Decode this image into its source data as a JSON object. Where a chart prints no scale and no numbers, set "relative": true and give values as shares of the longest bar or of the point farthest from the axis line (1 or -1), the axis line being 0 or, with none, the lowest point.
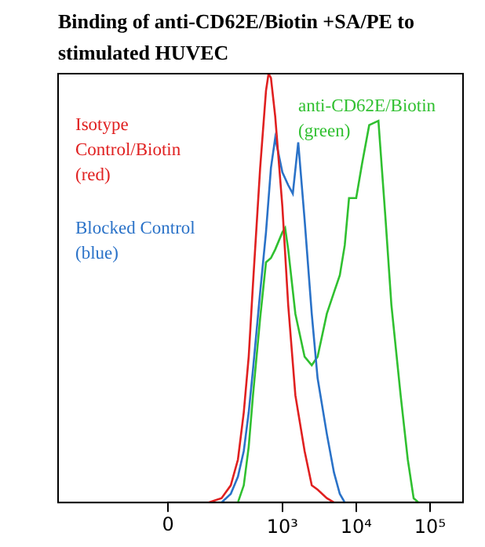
{
  "chart_data": {
    "type": "line",
    "title": "Binding of anti-CD62E/Biotin +SA/PE to stimulated HUVEC",
    "relative": true,
    "log": "x",
    "xlim": [
      0,
      280000
    ],
    "xticks": [
      0,
      {
        "value": 1000,
        "label": "10³"
      },
      {
        "value": 10000,
        "label": "10⁴"
      },
      {
        "value": 100000,
        "label": "10⁵"
      }
    ],
    "series": [
      {
        "name": "Isotype Control/Biotin (red)",
        "color": "#e02020",
        "x": [
          100,
          150,
          200,
          250,
          300,
          350,
          400,
          500,
          600,
          650,
          700,
          800,
          1000,
          1200,
          1500,
          2000,
          2500,
          3000,
          4000,
          5000
        ],
        "values": [
          0,
          0.01,
          0.04,
          0.1,
          0.21,
          0.34,
          0.51,
          0.78,
          0.96,
          1,
          0.99,
          0.9,
          0.69,
          0.46,
          0.25,
          0.12,
          0.04,
          0.03,
          0.01,
          0
        ]
      },
      {
        "name": "Blocked Control (blue)",
        "color": "#2a72c8",
        "x": [
          150,
          200,
          250,
          300,
          350,
          400,
          500,
          600,
          700,
          800,
          1000,
          1200,
          1385,
          1640,
          2000,
          2500,
          3000,
          4000,
          5000,
          6000,
          7000
        ],
        "values": [
          0,
          0.02,
          0.06,
          0.12,
          0.21,
          0.31,
          0.49,
          0.63,
          0.78,
          0.85,
          0.77,
          0.74,
          0.72,
          0.84,
          0.66,
          0.44,
          0.29,
          0.16,
          0.07,
          0.02,
          0
        ]
      },
      {
        "name": "anti-CD62E/Biotin (green)",
        "color": "#30c030",
        "x": [
          250,
          300,
          350,
          400,
          500,
          600,
          700,
          800,
          1000,
          1090,
          1200,
          1500,
          2000,
          2500,
          3000,
          4000,
          5000,
          6000,
          7000,
          8000,
          10000,
          12000,
          15000,
          20000,
          25000,
          30000,
          40000,
          50000,
          60000,
          70000
        ],
        "values": [
          0,
          0.04,
          0.13,
          0.25,
          0.43,
          0.56,
          0.57,
          0.59,
          0.63,
          0.64,
          0.59,
          0.44,
          0.34,
          0.32,
          0.34,
          0.44,
          0.49,
          0.53,
          0.6,
          0.71,
          0.71,
          0.79,
          0.88,
          0.89,
          0.66,
          0.46,
          0.25,
          0.1,
          0.01,
          0
        ]
      }
    ]
  }
}
